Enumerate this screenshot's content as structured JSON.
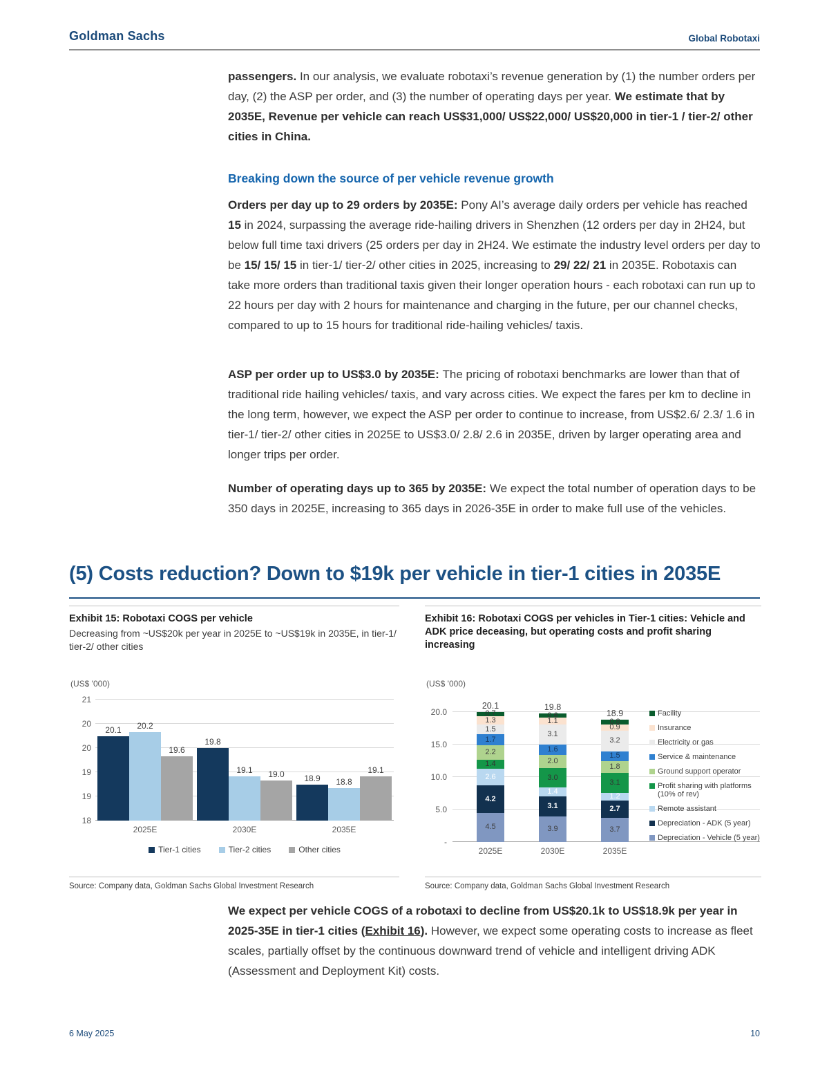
{
  "header": {
    "brand": "Goldman Sachs",
    "doc_title": "Global Robotaxi"
  },
  "footer": {
    "date": "6 May 2025",
    "page_number": "10"
  },
  "section_heading": "(5) Costs reduction? Down to $19k per vehicle in tier-1 cities in 2035E",
  "body": {
    "subheading": "Breaking down the source of per vehicle revenue growth",
    "p1": [
      {
        "t": "passengers. ",
        "b": 1
      },
      {
        "t": "In our analysis, we evaluate robotaxi’s revenue generation by (1) the number orders per day, (2) the ASP per order, and (3) the number of operating days per year. "
      },
      {
        "t": "We estimate that by 2035E, Revenue per vehicle can reach US$31,000/ US$22,000/ US$20,000 in tier-1 / tier-2/ other cities in China.",
        "b": 1
      }
    ],
    "p2": [
      {
        "t": "Orders per day up to 29 orders by 2035E: ",
        "b": 1
      },
      {
        "t": "Pony AI’s average daily orders per vehicle has reached "
      },
      {
        "t": "15",
        "b": 1
      },
      {
        "t": " in 2024, surpassing the average ride-hailing drivers in Shenzhen (12 orders per day in 2H24, but below full time taxi drivers (25 orders per day in 2H24. We estimate the industry level orders per day to be "
      },
      {
        "t": "15/ 15/ 15",
        "b": 1
      },
      {
        "t": " in tier-1/ tier-2/ other cities in 2025, increasing to "
      },
      {
        "t": "29/ 22/ 21",
        "b": 1
      },
      {
        "t": " in 2035E. Robotaxis can take more orders than traditional taxis given their longer operation hours - each robotaxi can run up to 22 hours per day with 2 hours for maintenance and charging in the future, per our channel checks, compared to up to 15 hours for traditional ride-hailing vehicles/ taxis."
      }
    ],
    "p3": [
      {
        "t": "ASP per order up to US$3.0 by 2035E: ",
        "b": 1
      },
      {
        "t": "The pricing of robotaxi benchmarks are lower than that of traditional ride hailing vehicles/ taxis, and vary across cities. We expect the fares per km to decline in the long term, however, we expect the ASP per order to continue to increase, from US$2.6/ 2.3/ 1.6 in tier-1/ tier-2/ other cities in 2025E to US$3.0/ 2.8/ 2.6 in 2035E, driven by larger operating area and longer trips per order."
      }
    ],
    "p4": [
      {
        "t": "Number of operating days up to 365 by 2035E: ",
        "b": 1
      },
      {
        "t": "We expect the total number of operation days to be 350 days in 2025E, increasing to 365 days in 2026-35E in order to make full use of the vehicles."
      }
    ],
    "closing": [
      {
        "t": "We expect per vehicle COGS of a robotaxi to decline from US$20.1k to US$18.9k per year in 2025-35E in tier-1 cities (",
        "b": 1
      },
      {
        "t": "Exhibit 16",
        "b": 1,
        "u": 1,
        "link": 1,
        "name": "exhibit-16-link"
      },
      {
        "t": "). ",
        "b": 1
      },
      {
        "t": "However, we expect some operating costs to increase as fleet scales, partially offset by the continuous downward trend of vehicle and intelligent driving ADK (Assessment and Deployment Kit) costs."
      }
    ]
  },
  "chart_data": [
    {
      "type": "bar",
      "title": "Exhibit 15: Robotaxi COGS per vehicle",
      "subtitle": "Decreasing from ~US$20k per year in 2025E to ~US$19k in 2035E, in tier-1/ tier-2/ other cities",
      "source": "Source: Company data, Goldman Sachs Global Investment Research",
      "axis_label": "(US$ '000)",
      "categories": [
        "2025E",
        "2030E",
        "2035E"
      ],
      "series": [
        {
          "name": "Tier-1 cities",
          "color": "#14395d",
          "values": [
            "20.1",
            "19.8",
            "18.9"
          ]
        },
        {
          "name": "Tier-2 cities",
          "color": "#a7cde7",
          "values": [
            "20.2",
            "19.1",
            "18.8"
          ]
        },
        {
          "name": "Other cities",
          "color": "#a5a5a5",
          "values": [
            "19.6",
            "19.0",
            "19.1"
          ]
        }
      ],
      "ylim": [
        18,
        21
      ],
      "yticks": [
        {
          "value": 21,
          "label": "21"
        },
        {
          "value": 20.4,
          "label": "20"
        },
        {
          "value": 19.8,
          "label": "20"
        },
        {
          "value": 19.2,
          "label": "19"
        },
        {
          "value": 18.6,
          "label": "19"
        },
        {
          "value": 18,
          "label": "18"
        }
      ],
      "grid": true,
      "legend_position": "bottom"
    },
    {
      "type": "stacked-bar",
      "title": "Exhibit 16: Robotaxi COGS per vehicles in Tier-1 cities: Vehicle and ADK price deceasing, but operating costs and profit sharing increasing",
      "source": "Source: Company data, Goldman Sachs Global Investment Research",
      "axis_label": "(US$ '000)",
      "categories": [
        "2025E",
        "2030E",
        "2035E"
      ],
      "totals": [
        "20.1",
        "19.8",
        "18.9"
      ],
      "series": [
        {
          "name": "Depreciation - Vehicle (5 year)",
          "color": "#8097c1",
          "text": "#3f3f3f",
          "values": [
            "4.5",
            "3.9",
            "3.7"
          ]
        },
        {
          "name": "Depreciation - ADK (5 year)",
          "color": "#12314f",
          "text": "#ffffff",
          "bold": 1,
          "values": [
            "4.2",
            "3.1",
            "2.7"
          ]
        },
        {
          "name": "Remote assistant",
          "color": "#b9d8f0",
          "text": "#ffffff",
          "values": [
            "2.6",
            "1.4",
            "1.2"
          ]
        },
        {
          "name": "Profit sharing with platforms (10% of rev)",
          "color": "#149649",
          "text": "#333333",
          "values": [
            "1.4",
            "3.0",
            "3.1"
          ]
        },
        {
          "name": "Ground support operator",
          "color": "#afd38e",
          "text": "#404040",
          "values": [
            "2.2",
            "2.0",
            "1.8"
          ]
        },
        {
          "name": "Service & maintenance",
          "color": "#2f80d0",
          "text": "#17375e",
          "values": [
            "1.7",
            "1.6",
            "1.5"
          ]
        },
        {
          "name": "Electricity or gas",
          "color": "#ebebeb",
          "text": "#404040",
          "values": [
            "1.5",
            "3.1",
            "3.2"
          ]
        },
        {
          "name": "Insurance",
          "color": "#fbe2cf",
          "text": "#404040",
          "values": [
            "1.3",
            "1.1",
            "0.9"
          ]
        },
        {
          "name": "Facility",
          "color": "#0a5c2d",
          "text": "#333333",
          "values": [
            "0.7",
            "0.6",
            "0.8"
          ]
        }
      ],
      "ylim": [
        0,
        21
      ],
      "yticks": [
        {
          "value": 20,
          "label": "20.0"
        },
        {
          "value": 15,
          "label": "15.0"
        },
        {
          "value": 10,
          "label": "10.0"
        },
        {
          "value": 5,
          "label": "5.0"
        },
        {
          "value": 0,
          "label": "-"
        }
      ],
      "legend_order": [
        "Facility",
        "Insurance",
        "Electricity or gas",
        "Service & maintenance",
        "Ground support operator",
        "Profit sharing with platforms (10% of rev)",
        "Remote assistant",
        "Depreciation - ADK (5 year)",
        "Depreciation - Vehicle (5 year)"
      ],
      "grid": true,
      "legend_position": "right"
    }
  ]
}
